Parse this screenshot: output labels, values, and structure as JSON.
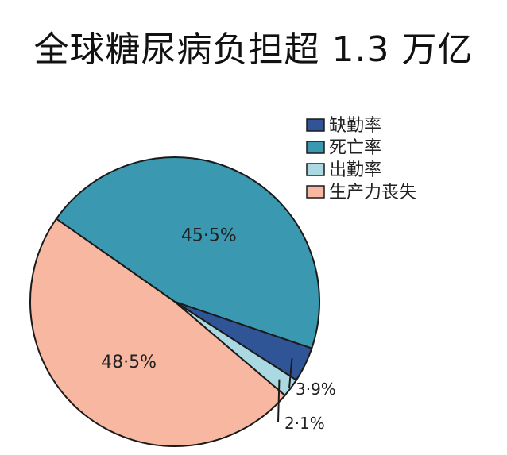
{
  "chart_data": {
    "type": "pie",
    "title": "全球糖尿病负担超 1.3 万亿",
    "slices": [
      {
        "name": "缺勤率",
        "value": 3.9,
        "label": "3·9%",
        "color": "#2f5597"
      },
      {
        "name": "死亡率",
        "value": 45.5,
        "label": "45·5%",
        "color": "#3a98b0"
      },
      {
        "name": "出勤率",
        "value": 2.1,
        "label": "2·1%",
        "color": "#aad9e2"
      },
      {
        "name": "生产力丧失",
        "value": 48.5,
        "label": "48·5%",
        "color": "#f8b7a1"
      }
    ],
    "legend_position": "top-right"
  }
}
